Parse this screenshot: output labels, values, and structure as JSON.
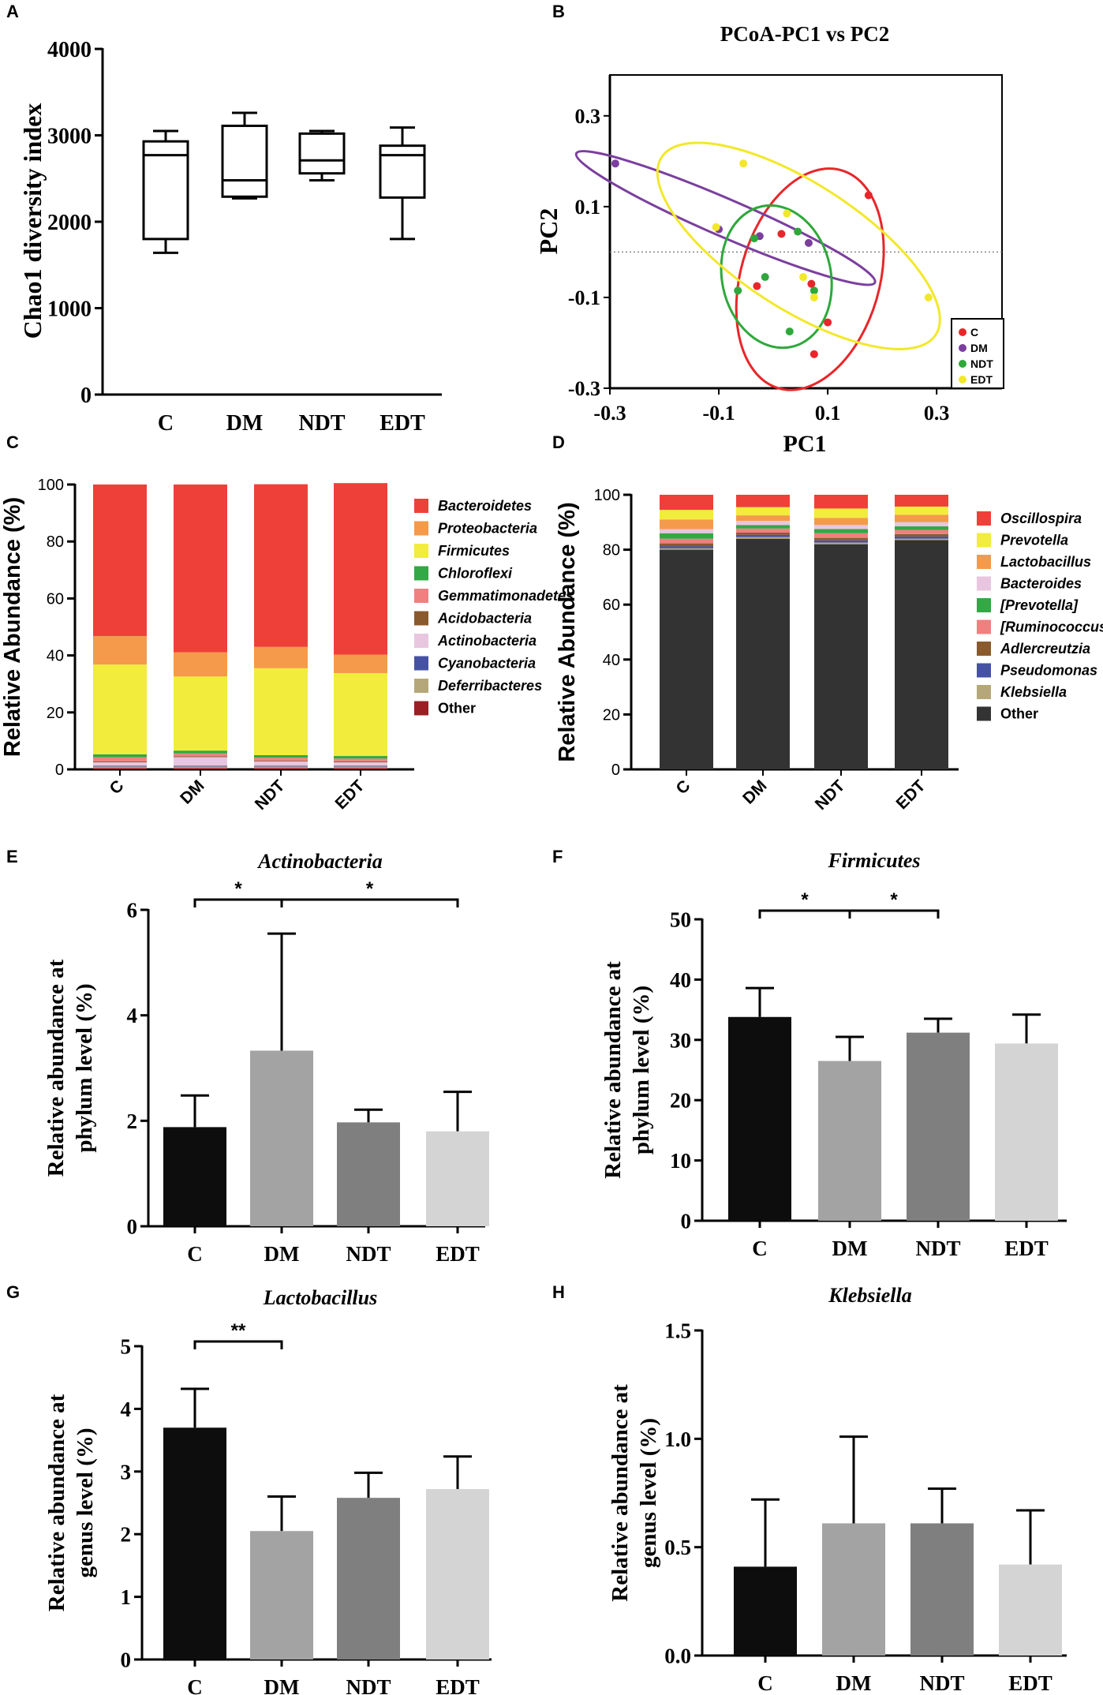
{
  "figure": {
    "panel_letters": [
      "A",
      "B",
      "C",
      "D",
      "E",
      "F",
      "G",
      "H"
    ]
  },
  "chart_data": [
    {
      "panel": "A",
      "type": "box",
      "title": "",
      "xlabel": "",
      "ylabel": "Chao1 diversity index",
      "categories": [
        "C",
        "DM",
        "NDT",
        "EDT"
      ],
      "boxes": [
        {
          "min": 1640,
          "q1": 1800,
          "median": 2770,
          "q3": 2930,
          "max": 3050
        },
        {
          "min": 2270,
          "q1": 2290,
          "median": 2480,
          "q3": 3110,
          "max": 3260
        },
        {
          "min": 2480,
          "q1": 2560,
          "median": 2710,
          "q3": 3020,
          "max": 3050
        },
        {
          "min": 1800,
          "q1": 2280,
          "median": 2770,
          "q3": 2880,
          "max": 3090
        }
      ],
      "ylim": [
        0,
        4000
      ],
      "yticks": [
        "0",
        "1000",
        "2000",
        "3000",
        "4000"
      ]
    },
    {
      "panel": "B",
      "type": "scatter",
      "title": "PCoA-PC1 vs  PC2",
      "xlabel": "PC1",
      "ylabel": "PC2",
      "xlim": [
        -0.3,
        0.42
      ],
      "ylim": [
        -0.3,
        0.39
      ],
      "xticks": [
        "-0.3",
        "-0.1",
        "0.1",
        "0.3"
      ],
      "yticks": [
        "0.3",
        "0.1",
        "-0.1",
        "-0.3"
      ],
      "series": [
        {
          "name": "C",
          "color": "#e8262a",
          "points": [
            [
              0.175,
              0.125
            ],
            [
              0.015,
              0.04
            ],
            [
              0.07,
              -0.07
            ],
            [
              0.1,
              -0.155
            ],
            [
              0.075,
              -0.225
            ],
            [
              -0.03,
              -0.075
            ]
          ]
        },
        {
          "name": "DM",
          "color": "#7b3f9e",
          "points": [
            [
              -0.29,
              0.195
            ],
            [
              -0.1,
              0.05
            ],
            [
              0.065,
              0.02
            ],
            [
              -0.025,
              0.035
            ]
          ]
        },
        {
          "name": "NDT",
          "color": "#2ea83a",
          "points": [
            [
              -0.035,
              0.03
            ],
            [
              -0.015,
              -0.055
            ],
            [
              0.045,
              0.045
            ],
            [
              0.03,
              -0.175
            ],
            [
              -0.065,
              -0.085
            ],
            [
              0.075,
              -0.085
            ]
          ]
        },
        {
          "name": "EDT",
          "color": "#f2e82a",
          "points": [
            [
              -0.055,
              0.195
            ],
            [
              -0.105,
              0.055
            ],
            [
              0.025,
              0.085
            ],
            [
              0.055,
              -0.055
            ],
            [
              0.285,
              -0.1
            ],
            [
              0.075,
              -0.1
            ]
          ]
        }
      ],
      "legend": [
        "C",
        "DM",
        "NDT",
        "EDT"
      ]
    },
    {
      "panel": "C",
      "type": "stacked-bar",
      "title": "",
      "xlabel": "",
      "ylabel": "Relative Abundance (%)",
      "categories": [
        "C",
        "DM",
        "NDT",
        "EDT"
      ],
      "ylim": [
        0,
        100
      ],
      "yticks": [
        "0",
        "20",
        "40",
        "60",
        "80",
        "100"
      ],
      "series": [
        {
          "name": "Other",
          "color": "#9a1e24",
          "values": [
            0.5,
            0.5,
            0.5,
            0.5
          ]
        },
        {
          "name": "Deferribacteres",
          "color": "#b5a77a",
          "values": [
            0.5,
            0.5,
            0.5,
            0.5
          ]
        },
        {
          "name": "Cyanobacteria",
          "color": "#4552a4",
          "values": [
            0.3,
            0.3,
            0.3,
            0.3
          ]
        },
        {
          "name": "Actinobacteria",
          "color": "#e8c6e0",
          "values": [
            1.2,
            3.0,
            1.5,
            1.2
          ]
        },
        {
          "name": "Acidobacteria",
          "color": "#8a5a2c",
          "values": [
            0.3,
            0.3,
            0.3,
            0.3
          ]
        },
        {
          "name": "Gemmatimonadetes",
          "color": "#f08080",
          "values": [
            1.5,
            1.0,
            1.0,
            1.0
          ]
        },
        {
          "name": "Chloroflexi",
          "color": "#33a844",
          "values": [
            1.0,
            1.0,
            0.9,
            0.9
          ]
        },
        {
          "name": "Firmicutes",
          "color": "#f2ec3c",
          "values": [
            31.5,
            26.0,
            30.5,
            29.1
          ]
        },
        {
          "name": "Proteobacteria",
          "color": "#f49a4a",
          "values": [
            10.0,
            8.5,
            7.5,
            6.5
          ]
        },
        {
          "name": "Bacteroidetes",
          "color": "#ee4039",
          "values": [
            53.2,
            58.9,
            57.1,
            60.2
          ]
        }
      ],
      "legend": [
        "Bacteroidetes",
        "Proteobacteria",
        "Firmicutes",
        "Chloroflexi",
        "Gemmatimonadetes",
        "Acidobacteria",
        "Actinobacteria",
        "Cyanobacteria",
        "Deferribacteres",
        "Other"
      ]
    },
    {
      "panel": "D",
      "type": "stacked-bar",
      "title": "",
      "xlabel": "",
      "ylabel": "Relative Abundance (%)",
      "categories": [
        "C",
        "DM",
        "NDT",
        "EDT"
      ],
      "ylim": [
        0,
        100
      ],
      "yticks": [
        "0",
        "20",
        "40",
        "60",
        "80",
        "100"
      ],
      "series": [
        {
          "name": "Other",
          "color": "#333333",
          "values": [
            80.0,
            84.0,
            82.0,
            83.5
          ]
        },
        {
          "name": "Klebsiella",
          "color": "#b5a77a",
          "values": [
            0.5,
            0.6,
            0.6,
            0.5
          ]
        },
        {
          "name": "Pseudomonas",
          "color": "#4552a4",
          "values": [
            0.8,
            0.8,
            0.8,
            0.8
          ]
        },
        {
          "name": "Adlercreutzia",
          "color": "#8a5a2c",
          "values": [
            1.0,
            0.8,
            0.9,
            0.9
          ]
        },
        {
          "name": "[Ruminococcus]",
          "color": "#f08080",
          "values": [
            1.7,
            1.5,
            1.7,
            1.5
          ]
        },
        {
          "name": "[Prevotella]",
          "color": "#33a844",
          "values": [
            2.0,
            1.3,
            1.5,
            1.3
          ]
        },
        {
          "name": "Bacteroides",
          "color": "#e8c6e0",
          "values": [
            1.5,
            1.5,
            1.5,
            1.5
          ]
        },
        {
          "name": "Lactobacillus",
          "color": "#f49a4a",
          "values": [
            3.5,
            2.0,
            2.6,
            2.7
          ]
        },
        {
          "name": "Prevotella",
          "color": "#f2ec3c",
          "values": [
            3.5,
            3.0,
            3.4,
            3.0
          ]
        },
        {
          "name": "Oscillospira",
          "color": "#ee4039",
          "values": [
            5.5,
            4.5,
            5.0,
            4.3
          ]
        }
      ],
      "legend": [
        "Oscillospira",
        "Prevotella",
        "Lactobacillus",
        "Bacteroides",
        "[Prevotella]",
        "[Ruminococcus]",
        "Adlercreutzia",
        "Pseudomonas",
        "Klebsiella",
        "Other"
      ]
    },
    {
      "panel": "E",
      "type": "bar",
      "title": "Actinobacteria",
      "ylabel": "Relative abundance at phylum level (%)",
      "ylabel_lines": [
        "Relative abundance at",
        "phylum level (%)"
      ],
      "categories": [
        "C",
        "DM",
        "NDT",
        "EDT"
      ],
      "values": [
        1.88,
        3.33,
        1.97,
        1.8
      ],
      "errors": [
        0.6,
        2.22,
        0.24,
        0.75
      ],
      "colors": [
        "#0d0d0d",
        "#a3a3a3",
        "#7f7f7f",
        "#d4d4d4"
      ],
      "ylim": [
        0,
        6
      ],
      "yticks": [
        "0",
        "2",
        "4",
        "6"
      ],
      "significance": [
        {
          "from": 0,
          "to": 1,
          "label": "*"
        },
        {
          "from": 1,
          "to": 3,
          "label": "*"
        }
      ]
    },
    {
      "panel": "F",
      "type": "bar",
      "title": "Firmicutes",
      "ylabel": "Relative abundance at phylum level (%)",
      "ylabel_lines": [
        "Relative abundance at",
        "phylum level (%)"
      ],
      "categories": [
        "C",
        "DM",
        "NDT",
        "EDT"
      ],
      "values": [
        33.8,
        26.5,
        31.2,
        29.4
      ],
      "errors": [
        4.8,
        4.0,
        2.3,
        4.8
      ],
      "colors": [
        "#0d0d0d",
        "#a3a3a3",
        "#7f7f7f",
        "#d4d4d4"
      ],
      "ylim": [
        0,
        50
      ],
      "yticks": [
        "0",
        "10",
        "20",
        "30",
        "40",
        "50"
      ],
      "significance": [
        {
          "from": 0,
          "to": 1,
          "label": "*"
        },
        {
          "from": 1,
          "to": 2,
          "label": "*"
        }
      ]
    },
    {
      "panel": "G",
      "type": "bar",
      "title": "Lactobacillus",
      "ylabel": "Relative abundance at genus level  (%)",
      "ylabel_lines": [
        "Relative abundance at",
        "genus level  (%)"
      ],
      "categories": [
        "C",
        "DM",
        "NDT",
        "EDT"
      ],
      "values": [
        3.7,
        2.05,
        2.58,
        2.72
      ],
      "errors": [
        0.62,
        0.55,
        0.4,
        0.52
      ],
      "colors": [
        "#0d0d0d",
        "#a3a3a3",
        "#7f7f7f",
        "#d4d4d4"
      ],
      "ylim": [
        0,
        5
      ],
      "yticks": [
        "0",
        "1",
        "2",
        "3",
        "4",
        "5"
      ],
      "significance": [
        {
          "from": 0,
          "to": 1,
          "label": "**"
        }
      ]
    },
    {
      "panel": "H",
      "type": "bar",
      "title": "Klebsiella",
      "ylabel": "Relative abundance at genus level (%)",
      "ylabel_lines": [
        "Relative abundance at",
        "genus level (%)"
      ],
      "categories": [
        "C",
        "DM",
        "NDT",
        "EDT"
      ],
      "values": [
        0.41,
        0.61,
        0.61,
        0.42
      ],
      "errors": [
        0.31,
        0.4,
        0.16,
        0.25
      ],
      "colors": [
        "#0d0d0d",
        "#a3a3a3",
        "#7f7f7f",
        "#d4d4d4"
      ],
      "ylim": [
        0,
        1.5
      ],
      "yticks": [
        "0.0",
        "0.5",
        "1.0",
        "1.5"
      ],
      "significance": []
    }
  ]
}
